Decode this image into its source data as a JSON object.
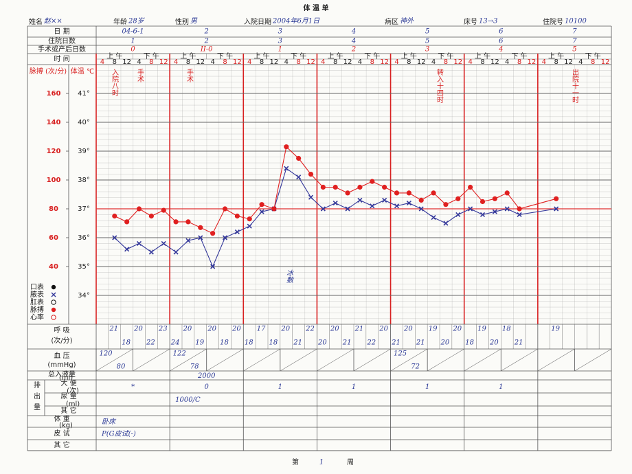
{
  "header": {
    "title": "体 温 单",
    "fields": [
      {
        "label": "姓名",
        "value": "赵××"
      },
      {
        "label": "年龄",
        "value": "28岁"
      },
      {
        "label": "性别",
        "value": "男"
      },
      {
        "label": "入院日期",
        "value": "2004年6月1日"
      },
      {
        "label": "病区",
        "value": "神外"
      },
      {
        "label": "床号",
        "value": "13→3"
      },
      {
        "label": "住院号",
        "value": "10100"
      }
    ]
  },
  "day_rows": {
    "date": {
      "label": "日 期",
      "values": [
        "04-6-1",
        "2",
        "3",
        "4",
        "5",
        "6",
        "7"
      ]
    },
    "hospital_day": {
      "label": "住院日数",
      "values": [
        1,
        2,
        3,
        4,
        5,
        6,
        7
      ]
    },
    "surgery_day": {
      "label": "手术或产后日数",
      "values": [
        "0",
        "II-0",
        "1",
        "2",
        "3",
        "4",
        "5"
      ]
    },
    "time": {
      "label": "时 间",
      "halves": [
        "上 午",
        "下 午"
      ],
      "hours": [
        4,
        8,
        12,
        4,
        8,
        12
      ]
    }
  },
  "chart_data": {
    "type": "line",
    "y_label": "体温 ℃",
    "y2_label": "脉搏 (次/分)",
    "x": [
      8,
      12,
      16,
      20,
      24,
      28,
      32,
      36,
      40,
      44,
      48,
      52,
      56,
      60,
      64,
      68,
      72,
      76,
      80,
      84,
      88,
      92,
      96,
      100,
      104,
      108,
      112,
      116,
      120,
      124,
      128,
      132,
      136,
      140,
      152
    ],
    "xlim": [
      2,
      170
    ],
    "ylim": [
      33,
      42
    ],
    "yticks": [
      {
        "value": 34,
        "label": "34°"
      },
      {
        "value": 35,
        "label": "35°"
      },
      {
        "value": 36,
        "label": "36°"
      },
      {
        "value": 37,
        "label": "37°"
      },
      {
        "value": 38,
        "label": "38°"
      },
      {
        "value": 39,
        "label": "39°"
      },
      {
        "value": 40,
        "label": "40°"
      },
      {
        "value": 41,
        "label": "41°"
      }
    ],
    "y2lim": [
      0,
      180
    ],
    "y2ticks": [
      40,
      60,
      80,
      100,
      120,
      140,
      160
    ],
    "reference_line": {
      "value": 37,
      "color": "#e03030"
    },
    "grid": true,
    "series": [
      {
        "name": "腋表",
        "color": "#34389a",
        "marker": "x",
        "values": [
          36.0,
          35.6,
          35.8,
          35.5,
          35.8,
          35.5,
          35.9,
          36.0,
          35.0,
          36.0,
          36.2,
          36.4,
          36.9,
          37.0,
          38.4,
          38.1,
          37.4,
          37.0,
          37.2,
          37.0,
          37.3,
          37.1,
          37.3,
          37.1,
          37.2,
          37.0,
          36.7,
          36.5,
          36.8,
          37.0,
          36.8,
          36.9,
          37.0,
          36.8,
          37.0
        ]
      },
      {
        "name": "脉搏",
        "color": "#e02020",
        "marker": "dot",
        "axis": "y2",
        "values": [
          75,
          71,
          80,
          75,
          79,
          71,
          71,
          67,
          63,
          80,
          75,
          73,
          83,
          80,
          123,
          115,
          104,
          95,
          95,
          91,
          95,
          99,
          95,
          91,
          91,
          86,
          91,
          83,
          87,
          95,
          85,
          87,
          91,
          80,
          87
        ]
      }
    ],
    "legend_other": [
      "口表",
      "肛表",
      "心率"
    ],
    "annotations": [
      "入院八时",
      "手术",
      "手术",
      "转入十四时",
      "出院十一时",
      "冰敷"
    ]
  },
  "vitals": {
    "respiration": {
      "label": "呼 吸",
      "unit": "(次/分)",
      "values": [
        21,
        18,
        20,
        22,
        23,
        24,
        20,
        19,
        20,
        18,
        20,
        18,
        17,
        18,
        20,
        21,
        22,
        20,
        20,
        21,
        21,
        22,
        20,
        21,
        20,
        21,
        19,
        20,
        20,
        18,
        19,
        20,
        18,
        21,
        19
      ]
    },
    "blood_pressure": {
      "label": "血 压",
      "unit": "(mmHg)",
      "values": [
        {
          "sys": "120",
          "dia": "80"
        },
        {
          "sys": "122",
          "dia": "78"
        },
        null,
        null,
        {
          "sys": "125",
          "dia": "72"
        },
        null,
        null
      ]
    },
    "intake": {
      "label": "总入液量",
      "unit": "(ml)",
      "values": [
        null,
        "2000",
        null,
        null,
        null,
        null,
        null
      ]
    },
    "output_label": "排出量",
    "stool": {
      "label": "大 便",
      "unit": "(次)",
      "values": [
        "*",
        "0",
        "1",
        "1",
        "1",
        "1",
        null
      ]
    },
    "urine": {
      "label": "尿 量",
      "unit": "(ml)",
      "values": [
        null,
        "1000/C",
        null,
        null,
        null,
        null,
        null
      ]
    },
    "output_other": {
      "label": "其 它"
    },
    "weight": {
      "label": "体 重",
      "unit": "(kg)",
      "values": [
        "卧床",
        null,
        null,
        null,
        null,
        null,
        null
      ]
    },
    "skin_test": {
      "label": "皮 试",
      "values": [
        "P(G皮试(-)",
        null,
        null,
        null,
        null,
        null,
        null
      ]
    },
    "other": {
      "label": "其 它"
    }
  },
  "footer": {
    "week_label": "第",
    "week": 1,
    "week_unit": "周"
  }
}
